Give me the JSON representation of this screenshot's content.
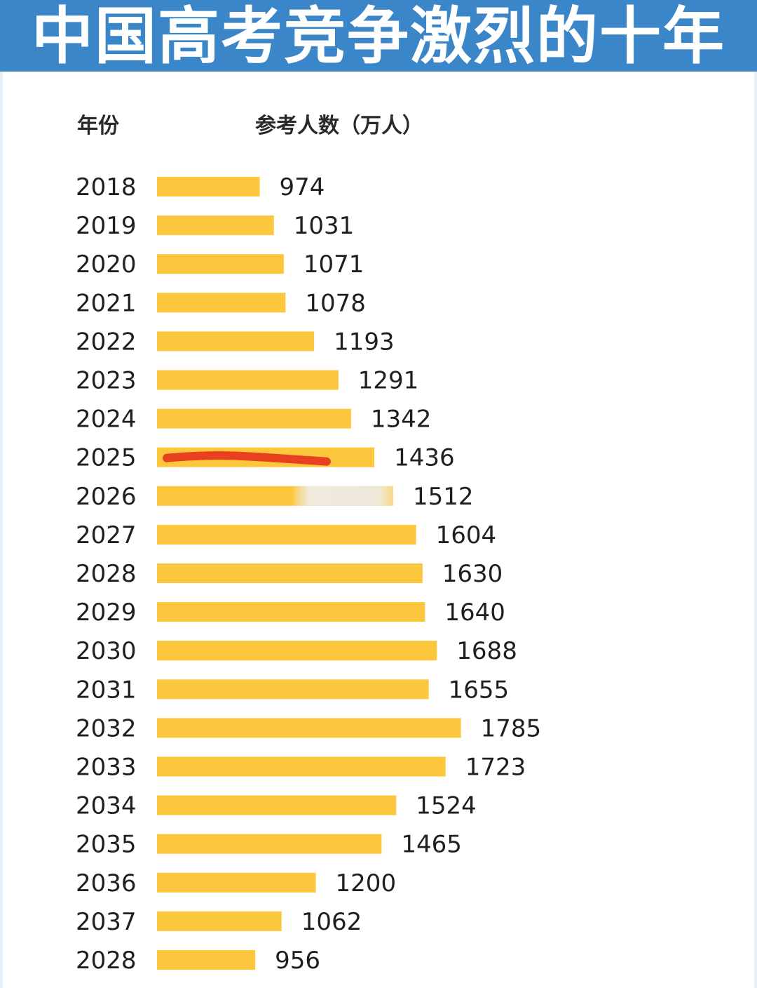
{
  "header": {
    "title": "中国高考竞争激烈的十年"
  },
  "columns": {
    "year_label": "年份",
    "count_label": "参考人数（万人）"
  },
  "colors": {
    "header_bg": "#3a86c8",
    "bar": "#fcc63d",
    "mark": "#e8411f"
  },
  "chart_data": {
    "type": "bar",
    "orientation": "horizontal",
    "title": "中国高考竞争激烈的十年",
    "xlabel": "参考人数（万人）",
    "ylabel": "年份",
    "categories": [
      "2018",
      "2019",
      "2020",
      "2021",
      "2022",
      "2023",
      "2024",
      "2025",
      "2026",
      "2027",
      "2028",
      "2029",
      "2030",
      "2031",
      "2032",
      "2033",
      "2034",
      "2035",
      "2036",
      "2037",
      "2028"
    ],
    "values": [
      974,
      1031,
      1071,
      1078,
      1193,
      1291,
      1342,
      1436,
      1512,
      1604,
      1630,
      1640,
      1688,
      1655,
      1785,
      1723,
      1524,
      1465,
      1200,
      1062,
      956
    ],
    "data_labels": [
      "974",
      "1031",
      "1071",
      "1078",
      "1193",
      "1291",
      "1342",
      "1436",
      "1512",
      "1604",
      "1630",
      "1640",
      "1688",
      "1655",
      "1785",
      "1723",
      "1524",
      "1465",
      "1200",
      "1062",
      "956"
    ],
    "grid": false,
    "legend": "none",
    "annotations": [
      {
        "type": "underline",
        "category_index": 7,
        "color": "#e8411f"
      },
      {
        "type": "blur",
        "category_index": 8
      }
    ]
  }
}
